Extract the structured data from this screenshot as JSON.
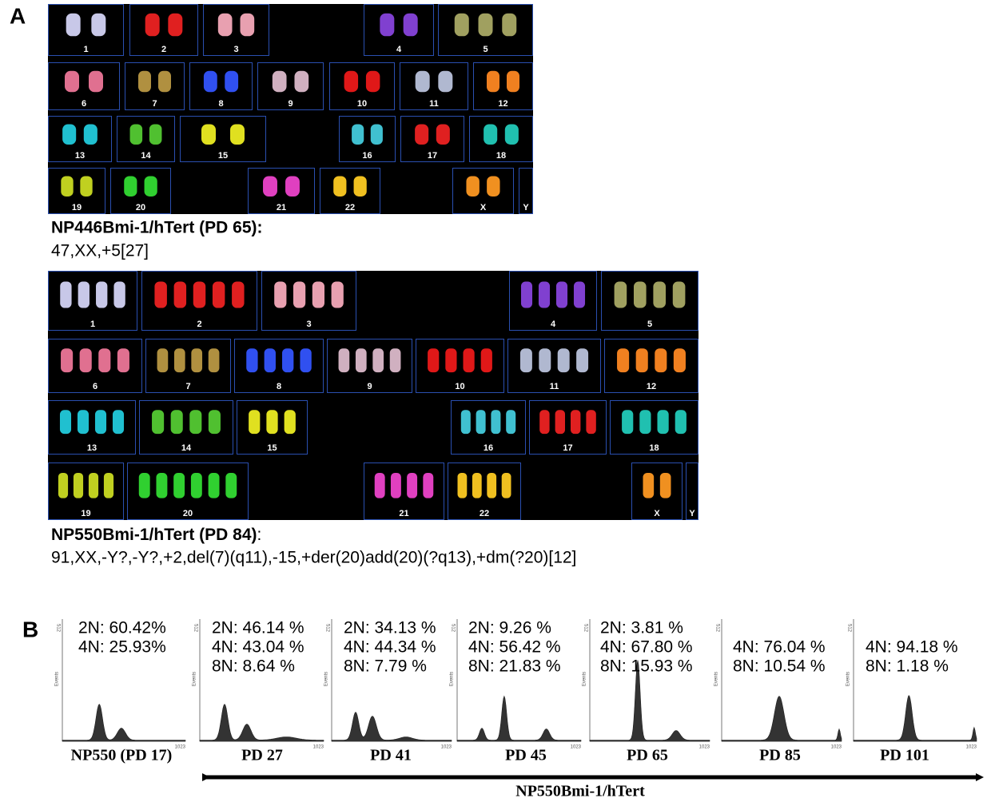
{
  "panel_a": {
    "label": "A",
    "karyotypes": [
      {
        "chromosomes": [
          "1",
          "2",
          "3",
          "4",
          "5",
          "6",
          "7",
          "8",
          "9",
          "10",
          "11",
          "12",
          "13",
          "14",
          "15",
          "16",
          "17",
          "18",
          "19",
          "20",
          "21",
          "22",
          "X",
          "Y"
        ],
        "caption_title": "NP446Bmi-1/hTert (PD 65):",
        "karyotype": "47,XX,+5[27]"
      },
      {
        "chromosomes": [
          "1",
          "2",
          "3",
          "4",
          "5",
          "6",
          "7",
          "8",
          "9",
          "10",
          "11",
          "12",
          "13",
          "14",
          "15",
          "16",
          "17",
          "18",
          "19",
          "20",
          "21",
          "22",
          "X",
          "Y"
        ],
        "caption_title": "NP550Bmi-1/hTert (PD 84)",
        "caption_colon": ":",
        "karyotype": "91,XX,-Y?,-Y?,+2,del(7)(q11),-15,+der(20)add(20)(?q13),+dm(?20)[12]"
      }
    ]
  },
  "panel_b": {
    "label": "B",
    "axis": {
      "ymax": "512",
      "xmax": "1023",
      "ylabel": "Events"
    },
    "histograms": [
      {
        "lines": [
          "2N: 60.42%",
          "4N: 25.93%"
        ],
        "label": "NP550 (PD 17)"
      },
      {
        "lines": [
          "2N: 46.14 %",
          "4N: 43.04 %",
          "8N: 8.64 %"
        ],
        "label": "PD 27"
      },
      {
        "lines": [
          "2N: 34.13 %",
          "4N: 44.34 %",
          "8N: 7.79 %"
        ],
        "label": "PD 41"
      },
      {
        "lines": [
          "2N: 9.26 %",
          "4N: 56.42 %",
          "8N: 21.83 %"
        ],
        "label": "PD 45"
      },
      {
        "lines": [
          "2N: 3.81 %",
          "4N: 67.80 %",
          "8N: 15.93 %"
        ],
        "label": "PD 65"
      },
      {
        "lines": [
          "4N: 76.04 %",
          "8N: 10.54 %"
        ],
        "label": "PD 85"
      },
      {
        "lines": [
          "4N: 94.18 %",
          "8N: 1.18 %"
        ],
        "label": "PD 101"
      }
    ],
    "arrow_label": "NP550Bmi-1/hTert"
  }
}
